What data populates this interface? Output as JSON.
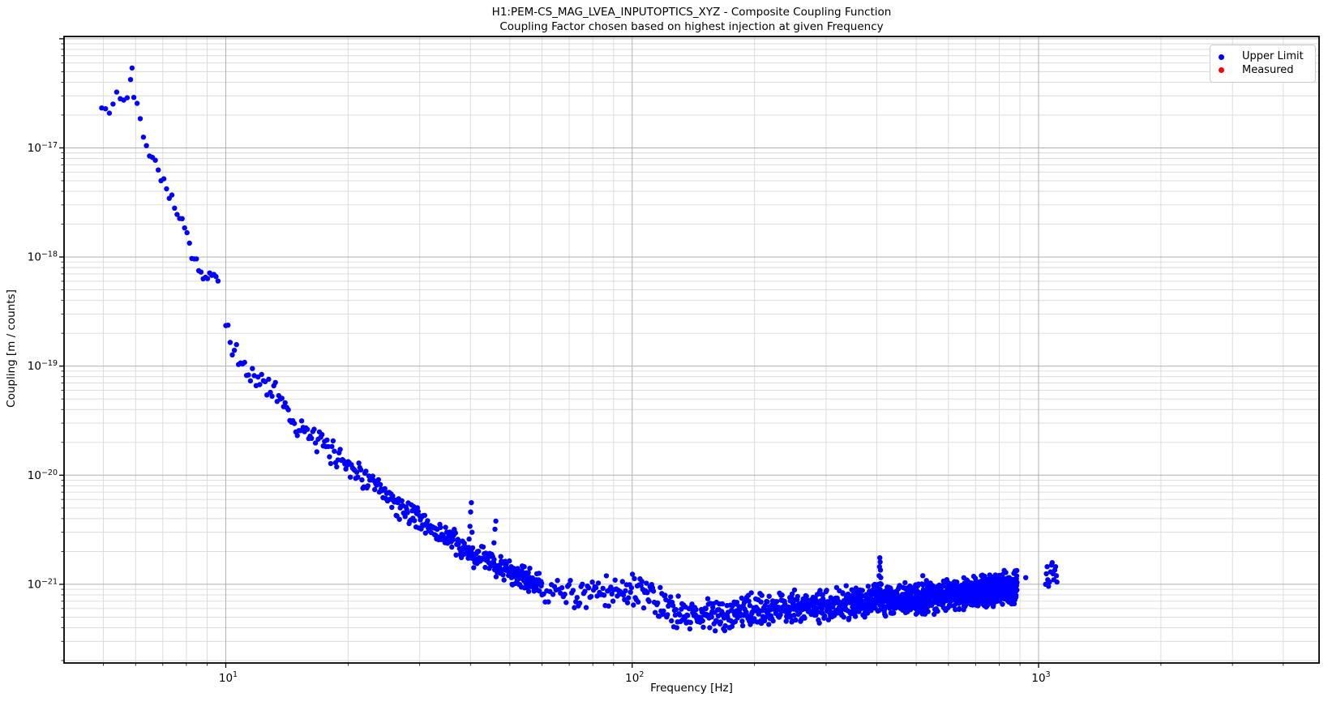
{
  "chart_data": {
    "type": "scatter",
    "title": "H1:PEM-CS_MAG_LVEA_INPUTOPTICS_XYZ - Composite Coupling Function",
    "subtitle": "Coupling Factor chosen based on highest injection at given Frequency",
    "xlabel": "Frequency [Hz]",
    "ylabel": "Coupling [m / counts]",
    "x_scale": "log",
    "y_scale": "log",
    "xlim": [
      4.0,
      4900
    ],
    "ylim": [
      1.9e-22,
      1.05e-16
    ],
    "grid": true,
    "xticks": [
      {
        "f": 10,
        "base": "10",
        "exp": "1"
      },
      {
        "f": 100,
        "base": "10",
        "exp": "2"
      },
      {
        "f": 1000,
        "base": "10",
        "exp": "3"
      }
    ],
    "yticks": [
      {
        "v": 1e-17,
        "base": "10",
        "exp": "−17"
      },
      {
        "v": 1e-18,
        "base": "10",
        "exp": "−18"
      },
      {
        "v": 1e-19,
        "base": "10",
        "exp": "−19"
      },
      {
        "v": 1e-20,
        "base": "10",
        "exp": "−20"
      },
      {
        "v": 1e-21,
        "base": "10",
        "exp": "−21"
      }
    ],
    "colors": {
      "background": "#ffffff",
      "grid_major": "#b0b0b0",
      "grid_minor": "#d9d9d9",
      "spine": "#000000",
      "text": "#000000"
    },
    "legend": {
      "position": "upper right",
      "entries": [
        {
          "label": "Upper Limit",
          "color": "#0000ff"
        },
        {
          "label": "Measured",
          "color": "#ff0000"
        }
      ]
    },
    "seed": 42,
    "series": [
      {
        "name": "Upper Limit",
        "color": "#0000ff",
        "marker_radius": 3.2,
        "segments": [
          {
            "f_start": 4.95,
            "f_end": 9.67,
            "step": 0.11,
            "jitter_dex": 0.08,
            "anchors": [
              [
                4.95,
                2.3e-17
              ],
              [
                5.1,
                2e-17
              ],
              [
                5.25,
                2.45e-17
              ],
              [
                5.4,
                3.1e-17
              ],
              [
                5.55,
                2.6e-17
              ],
              [
                5.7,
                2.9e-17
              ],
              [
                5.85,
                4.2e-17
              ],
              [
                5.95,
                3.1e-17
              ],
              [
                6.1,
                2.4e-17
              ],
              [
                6.25,
                1.5e-17
              ],
              [
                6.4,
                1e-17
              ],
              [
                6.55,
                8.6e-18
              ],
              [
                6.75,
                7e-18
              ],
              [
                6.95,
                5.8e-18
              ],
              [
                7.15,
                4.3e-18
              ],
              [
                7.4,
                3.2e-18
              ],
              [
                7.65,
                2.5e-18
              ],
              [
                7.9,
                1.9e-18
              ],
              [
                8.15,
                1.3e-18
              ],
              [
                8.35,
                1e-18
              ],
              [
                8.55,
                8e-19
              ],
              [
                8.75,
                6.6e-19
              ],
              [
                8.95,
                6e-19
              ],
              [
                9.15,
                6.6e-19
              ],
              [
                9.35,
                7e-19
              ],
              [
                9.5,
                6.4e-19
              ],
              [
                9.67,
                6.2e-19
              ]
            ]
          },
          {
            "f_start": 10.0,
            "f_end": 59.9,
            "step": 0.125,
            "jitter_dex": 0.13,
            "anchors": [
              [
                10.0,
                2e-19
              ],
              [
                10.3,
                1.6e-19
              ],
              [
                10.6,
                1.3e-19
              ],
              [
                11.0,
                1e-19
              ],
              [
                11.5,
                8.4e-20
              ],
              [
                12.0,
                7.4e-20
              ],
              [
                12.5,
                7e-20
              ],
              [
                13.0,
                6.4e-20
              ],
              [
                13.5,
                5.6e-20
              ],
              [
                14.2,
                3.9e-20
              ],
              [
                15.0,
                2.8e-20
              ],
              [
                15.6,
                2.5e-20
              ],
              [
                16.3,
                2.2e-20
              ],
              [
                17.5,
                1.85e-20
              ],
              [
                18.6,
                1.55e-20
              ],
              [
                20.0,
                1.3e-20
              ],
              [
                21.2,
                1.05e-20
              ],
              [
                22.5,
                8.8e-21
              ],
              [
                24.0,
                7e-21
              ],
              [
                25.5,
                5.9e-21
              ],
              [
                27.0,
                5e-21
              ],
              [
                29.0,
                4.4e-21
              ],
              [
                31.0,
                3.6e-21
              ],
              [
                33.0,
                3e-21
              ],
              [
                35.0,
                2.7e-21
              ],
              [
                37.0,
                2.3e-21
              ],
              [
                39.0,
                1.95e-21
              ],
              [
                42.0,
                1.75e-21
              ],
              [
                45.0,
                1.6e-21
              ],
              [
                50.0,
                1.3e-21
              ],
              [
                55.0,
                1.1e-21
              ],
              [
                59.9,
                9.6e-22
              ]
            ]
          },
          {
            "f_start": 60.0,
            "f_end": 885.0,
            "step": 0.55,
            "jitter_dex": 0.17,
            "anchors": [
              [
                60,
                9.5e-22
              ],
              [
                65,
                8.6e-22
              ],
              [
                70,
                8e-22
              ],
              [
                80,
                8e-22
              ],
              [
                90,
                8.5e-22
              ],
              [
                100,
                9e-22
              ],
              [
                105,
                8.5e-22
              ],
              [
                110,
                7.5e-22
              ],
              [
                120,
                6.2e-22
              ],
              [
                130,
                5.6e-22
              ],
              [
                140,
                5.4e-22
              ],
              [
                160,
                5.2e-22
              ],
              [
                180,
                5.5e-22
              ],
              [
                200,
                5.8e-22
              ],
              [
                240,
                6.1e-22
              ],
              [
                280,
                6.3e-22
              ],
              [
                320,
                6.6e-22
              ],
              [
                360,
                6.9e-22
              ],
              [
                400,
                7.2e-22
              ],
              [
                450,
                7.3e-22
              ],
              [
                500,
                7.4e-22
              ],
              [
                560,
                7.7e-22
              ],
              [
                620,
                8e-22
              ],
              [
                700,
                8.4e-22
              ],
              [
                780,
                8.8e-22
              ],
              [
                840,
                9.2e-22
              ],
              [
                885,
                9.6e-22
              ]
            ]
          }
        ],
        "extra_points": [
          [
            5.88,
            5.4e-17
          ],
          [
            39.7,
            2.6e-21
          ],
          [
            39.9,
            3.4e-21
          ],
          [
            40.05,
            4.6e-21
          ],
          [
            40.2,
            5.6e-21
          ],
          [
            40.35,
            3e-21
          ],
          [
            45.7,
            2.4e-21
          ],
          [
            45.95,
            3.2e-21
          ],
          [
            46.2,
            3.8e-21
          ],
          [
            404,
            1e-21
          ],
          [
            405,
            1.2e-21
          ],
          [
            406,
            1.45e-21
          ],
          [
            406.8,
            1.75e-21
          ],
          [
            407.5,
            1.6e-21
          ],
          [
            408.2,
            1.35e-21
          ],
          [
            409,
            1.15e-21
          ],
          [
            410,
            1e-21
          ],
          [
            519,
            1.2e-21
          ],
          [
            930,
            1.15e-21
          ],
          [
            1040,
            1e-21
          ],
          [
            1045,
            1.25e-21
          ],
          [
            1050,
            1.45e-21
          ],
          [
            1053,
            1.1e-21
          ],
          [
            1058,
            9.6e-22
          ],
          [
            1064,
            1.05e-21
          ],
          [
            1070,
            1.3e-21
          ],
          [
            1076,
            1.5e-21
          ],
          [
            1080,
            1.58e-21
          ],
          [
            1085,
            1.25e-21
          ],
          [
            1090,
            1.1e-21
          ],
          [
            1096,
            1.35e-21
          ],
          [
            1101,
            1.45e-21
          ],
          [
            1106,
            1.2e-21
          ],
          [
            1110,
            1.05e-21
          ]
        ]
      },
      {
        "name": "Measured",
        "color": "#ff0000",
        "marker_radius": 3.2,
        "segments": [],
        "extra_points": []
      }
    ]
  }
}
